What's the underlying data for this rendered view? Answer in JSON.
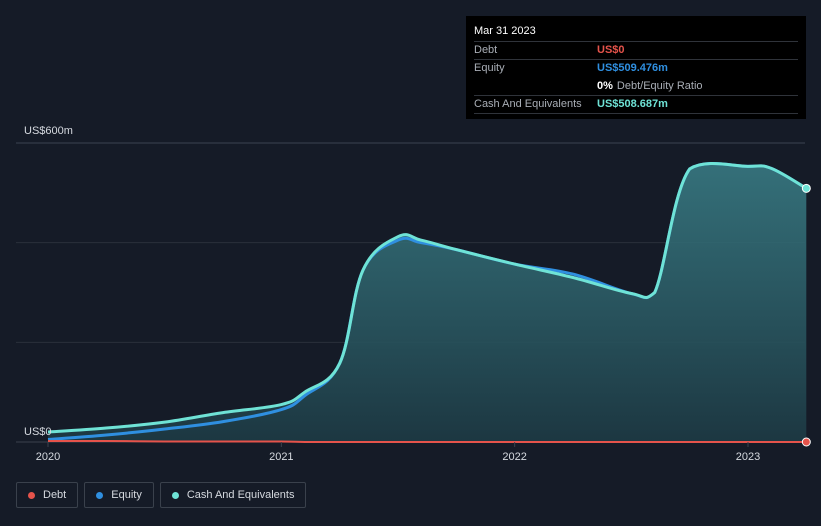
{
  "tooltip": {
    "date": "Mar 31 2023",
    "debt_label": "Debt",
    "debt_value": "US$0",
    "equity_label": "Equity",
    "equity_value": "US$509.476m",
    "ratio_pct": "0%",
    "ratio_label": "Debt/Equity Ratio",
    "cash_label": "Cash And Equivalents",
    "cash_value": "US$508.687m"
  },
  "legend": [
    {
      "label": "Debt",
      "color": "#e5534b"
    },
    {
      "label": "Equity",
      "color": "#2f8fe0"
    },
    {
      "label": "Cash And Equivalents",
      "color": "#6fe3d6"
    }
  ],
  "colors": {
    "debt": "#e5534b",
    "equity": "#2f8fe0",
    "cash": "#6fe3d6",
    "background": "#151b27"
  },
  "chart_data": {
    "type": "area",
    "ylim": [
      0,
      600
    ],
    "y_unit": "US$ m",
    "y_tick_labels": [
      {
        "value": 600,
        "label": "US$600m"
      },
      {
        "value": 0,
        "label": "US$0"
      }
    ],
    "gridlines_y": [
      0,
      200,
      400,
      600
    ],
    "x_range": [
      2020,
      2023.25
    ],
    "x_tick_labels": [
      {
        "value": 2020,
        "label": "2020"
      },
      {
        "value": 2021,
        "label": "2021"
      },
      {
        "value": 2022,
        "label": "2022"
      },
      {
        "value": 2023,
        "label": "2023"
      }
    ],
    "x": [
      2020.0,
      2020.25,
      2020.5,
      2020.75,
      2021.0,
      2021.1,
      2021.25,
      2021.35,
      2021.5,
      2021.6,
      2021.75,
      2022.0,
      2022.25,
      2022.5,
      2022.6,
      2022.75,
      2023.0,
      2023.1,
      2023.25
    ],
    "series": [
      {
        "name": "Debt",
        "values": [
          2,
          2,
          1,
          1,
          1,
          0,
          0,
          0,
          0,
          0,
          0,
          0,
          0,
          0,
          0,
          0,
          0,
          0,
          0
        ]
      },
      {
        "name": "Equity",
        "values": [
          5,
          14,
          26,
          41,
          65,
          93,
          158,
          345,
          405,
          400,
          386,
          357,
          337,
          298,
          300,
          548,
          553,
          549,
          509
        ]
      },
      {
        "name": "Cash And Equivalents",
        "values": [
          20,
          28,
          40,
          59,
          75,
          100,
          158,
          345,
          412,
          405,
          386,
          357,
          330,
          298,
          300,
          548,
          553,
          549,
          509
        ]
      }
    ]
  }
}
